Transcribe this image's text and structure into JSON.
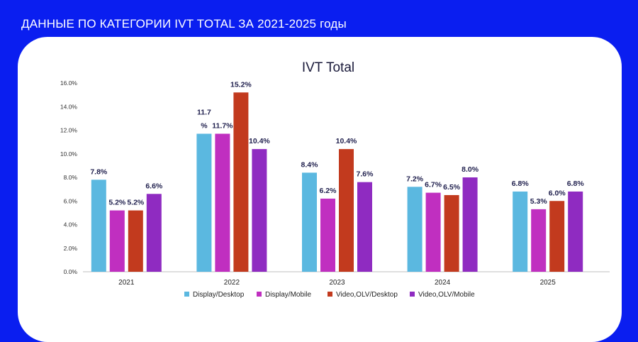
{
  "slide": {
    "title": "ДАННЫЕ ПО КАТЕГОРИИ IVT TOTAL ЗА 2021-2025 годы"
  },
  "colors": {
    "background": "#0a1ef0",
    "card": "#ffffff"
  },
  "chart_data": {
    "type": "bar",
    "title": "IVT Total",
    "xlabel": "",
    "ylabel": "",
    "categories": [
      "2021",
      "2022",
      "2023",
      "2024",
      "2025"
    ],
    "ylim": [
      0,
      16
    ],
    "yticks": [
      "0.0%",
      "2.0%",
      "4.0%",
      "6.0%",
      "8.0%",
      "10.0%",
      "12.0%",
      "14.0%",
      "16.0%"
    ],
    "grid": false,
    "legend_position": "bottom",
    "series": [
      {
        "name": "Display/Desktop",
        "color": "#5bb8e0",
        "values": [
          7.8,
          11.7,
          8.4,
          7.2,
          6.8
        ],
        "labels": [
          "7.8%",
          "11.7\n%",
          "8.4%",
          "7.2%",
          "6.8%"
        ]
      },
      {
        "name": "Display/Mobile",
        "color": "#c02fc0",
        "values": [
          5.2,
          11.7,
          6.2,
          6.7,
          5.3
        ],
        "labels": [
          "5.2%",
          "11.7%",
          "6.2%",
          "6.7%",
          "5.3%"
        ]
      },
      {
        "name": "Video,OLV/Desktop",
        "color": "#c23a1e",
        "values": [
          5.2,
          15.2,
          10.4,
          6.5,
          6.0
        ],
        "labels": [
          "5.2%",
          "15.2%",
          "10.4%",
          "6.5%",
          "6.0%"
        ]
      },
      {
        "name": "Video,OLV/Mobile",
        "color": "#8f2bc1",
        "values": [
          6.6,
          10.4,
          7.6,
          8.0,
          6.8
        ],
        "labels": [
          "6.6%",
          "10.4%",
          "7.6%",
          "8.0%",
          "6.8%"
        ]
      }
    ]
  }
}
